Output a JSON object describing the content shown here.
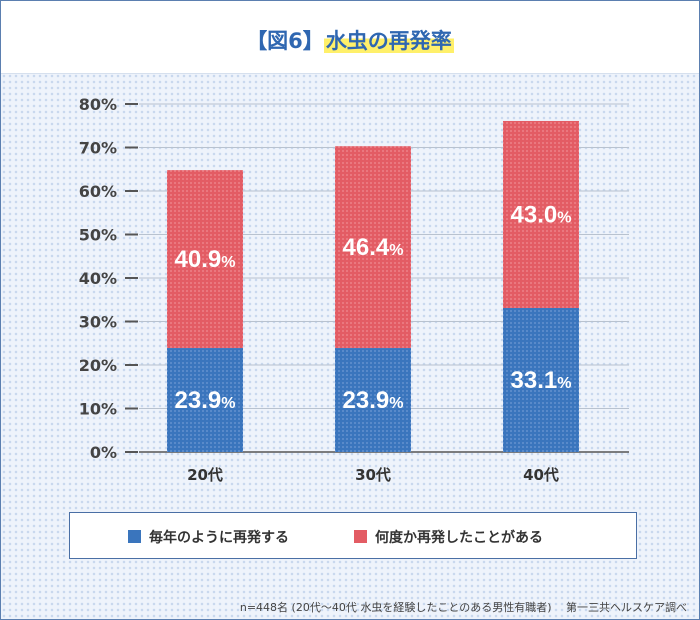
{
  "title": {
    "prefix": "【図6】",
    "text": "水虫の再発率"
  },
  "legend": {
    "items": [
      {
        "label": "毎年のように再発する",
        "color": "#3a75bd"
      },
      {
        "label": "何度か再発したことがある",
        "color": "#e35c64"
      }
    ]
  },
  "footer": {
    "note": "n=448名 (20代〜40代 水虫を経験したことのある男性有職者)　 第一三共ヘルスケア調べ"
  },
  "chart_data": {
    "type": "bar",
    "stacked": true,
    "categories": [
      "20代",
      "30代",
      "40代"
    ],
    "series": [
      {
        "name": "毎年のように再発する",
        "values": [
          23.9,
          23.9,
          33.1
        ],
        "color": "#3a75bd"
      },
      {
        "name": "何度か再発したことがある",
        "values": [
          40.9,
          46.4,
          43.0
        ],
        "color": "#e35c64"
      }
    ],
    "ylim": [
      0,
      80
    ],
    "yticks": [
      0,
      10,
      20,
      30,
      40,
      50,
      60,
      70,
      80
    ],
    "ytick_suffix": "%",
    "grid": true,
    "legend_position": "bottom"
  }
}
